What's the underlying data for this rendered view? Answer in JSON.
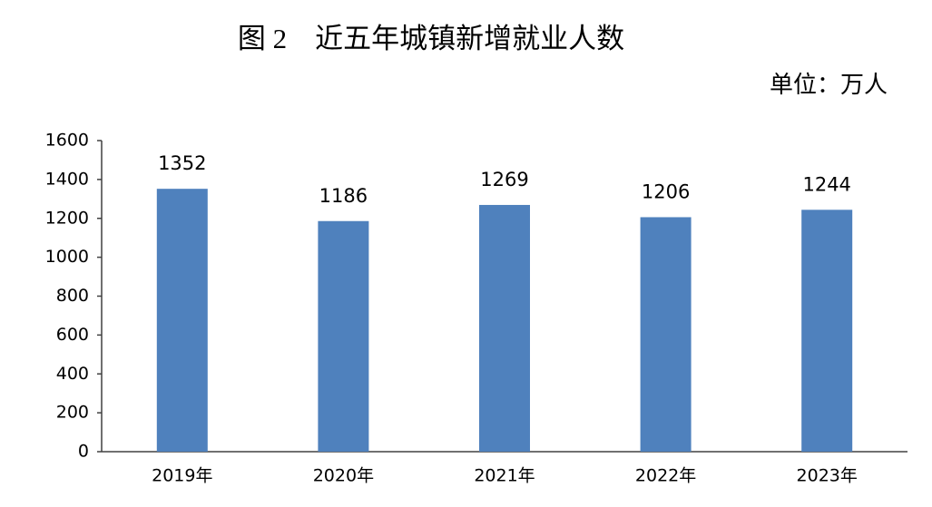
{
  "chart_data": {
    "type": "bar",
    "title": "图 2　近五年城镇新增就业人数",
    "subtitle": "单位：万人",
    "categories": [
      "2019年",
      "2020年",
      "2021年",
      "2022年",
      "2023年"
    ],
    "values": [
      1352,
      1186,
      1269,
      1206,
      1244
    ],
    "color": "#4f81bd",
    "ylim": [
      0,
      1600
    ],
    "yticks": [
      0,
      200,
      400,
      600,
      800,
      1000,
      1200,
      1400,
      1600
    ],
    "grid": false
  }
}
